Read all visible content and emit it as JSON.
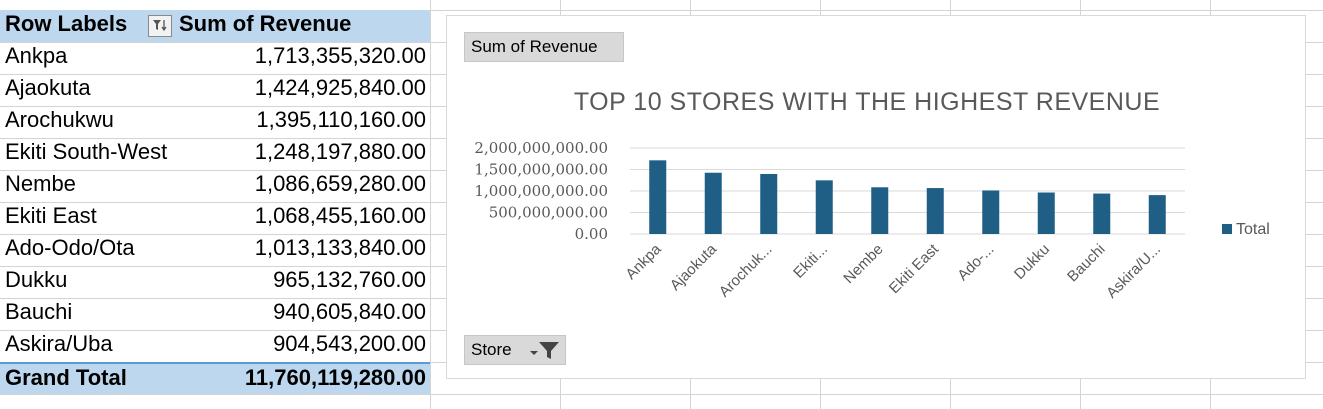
{
  "pivot": {
    "headers": {
      "row_labels": "Row Labels",
      "sum": "Sum of Revenue"
    },
    "rows": [
      {
        "label": "Ankpa",
        "value": "1,713,355,320.00"
      },
      {
        "label": "Ajaokuta",
        "value": "1,424,925,840.00"
      },
      {
        "label": "Arochukwu",
        "value": "1,395,110,160.00"
      },
      {
        "label": "Ekiti South-West",
        "value": "1,248,197,880.00"
      },
      {
        "label": "Nembe",
        "value": "1,086,659,280.00"
      },
      {
        "label": "Ekiti East",
        "value": "1,068,455,160.00"
      },
      {
        "label": "Ado-Odo/Ota",
        "value": "1,013,133,840.00"
      },
      {
        "label": "Dukku",
        "value": "965,132,760.00"
      },
      {
        "label": "Bauchi",
        "value": "940,605,840.00"
      },
      {
        "label": "Askira/Uba",
        "value": "904,543,200.00"
      }
    ],
    "grand_total": {
      "label": "Grand Total",
      "value": "11,760,119,280.00"
    }
  },
  "chart": {
    "value_field_button": "Sum of Revenue",
    "axis_field_button": "Store"
  },
  "colors": {
    "bar": "#1f5f86",
    "header_fill": "#bdd7ee",
    "title": "#595959"
  },
  "icons": {
    "sort_filter": "filter-sort-icon",
    "axis_filter": "filter-funnel-icon"
  },
  "chart_data": {
    "type": "bar",
    "title": "TOP 10 STORES WITH THE HIGHEST REVENUE",
    "categories": [
      "Ankpa",
      "Ajaokuta",
      "Arochuk...",
      "Ekiti...",
      "Nembe",
      "Ekiti East",
      "Ado-...",
      "Dukku",
      "Bauchi",
      "Askira/U..."
    ],
    "series": [
      {
        "name": "Total",
        "values": [
          1713355320,
          1424925840,
          1395110160,
          1248197880,
          1086659280,
          1068455160,
          1013133840,
          965132760,
          940605840,
          904543200
        ]
      }
    ],
    "ylim": [
      0,
      2000000000
    ],
    "yticks": [
      0,
      500000000,
      1000000000,
      1500000000,
      2000000000
    ],
    "ytick_labels": [
      "0.00",
      "500,000,000.00",
      "1,000,000,000.00",
      "1,500,000,000.00",
      "2,000,000,000.00"
    ],
    "xlabel": "",
    "ylabel": "",
    "grid": true,
    "legend": "right"
  }
}
